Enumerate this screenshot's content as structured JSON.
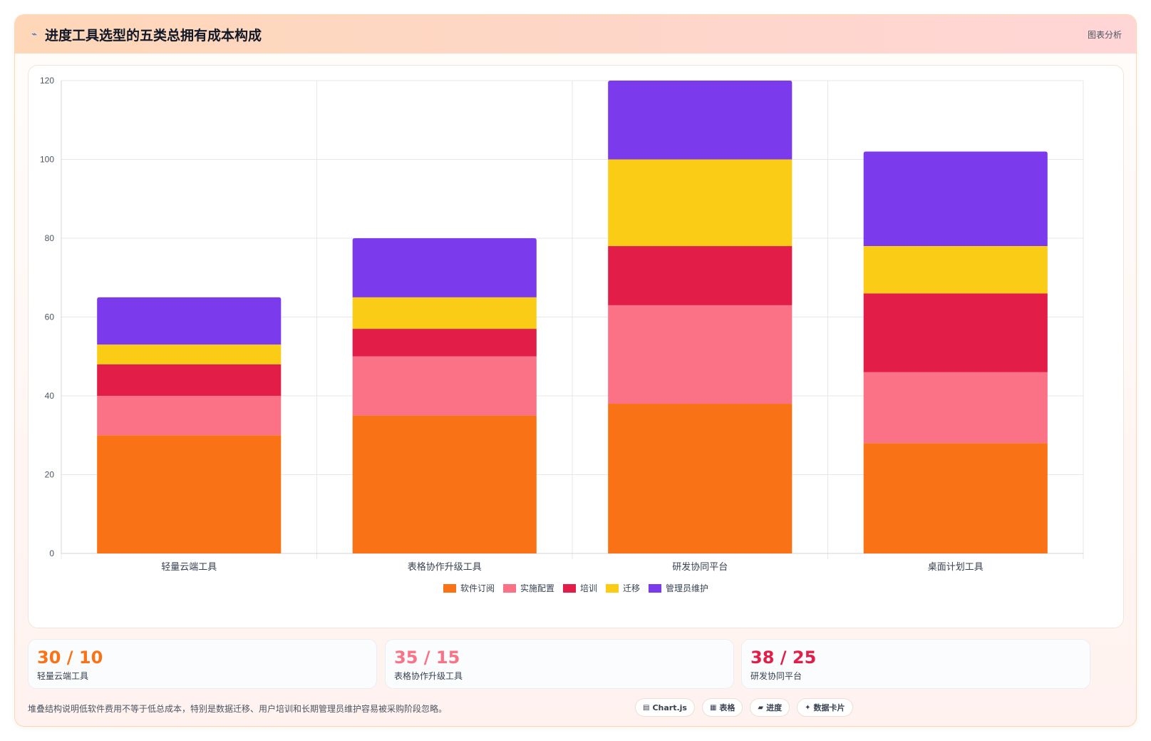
{
  "header": {
    "icon": "trend-icon",
    "title": "进度工具选型的五类总拥有成本构成",
    "tag": "图表分析"
  },
  "chart_data": {
    "type": "bar",
    "stacked": true,
    "categories": [
      "轻量云端工具",
      "表格协作升级工具",
      "研发协同平台",
      "桌面计划工具"
    ],
    "series": [
      {
        "name": "软件订阅",
        "color": "#f97316",
        "values": [
          30,
          35,
          38,
          28
        ]
      },
      {
        "name": "实施配置",
        "color": "#fb7185",
        "values": [
          10,
          15,
          25,
          18
        ]
      },
      {
        "name": "培训",
        "color": "#e11d48",
        "values": [
          8,
          7,
          15,
          20
        ]
      },
      {
        "name": "迁移",
        "color": "#facc15",
        "values": [
          5,
          8,
          22,
          12
        ]
      },
      {
        "name": "管理员维护",
        "color": "#7c3aed",
        "values": [
          12,
          15,
          20,
          24
        ]
      }
    ],
    "ylim": [
      0,
      120
    ],
    "yticks": [
      0,
      20,
      40,
      60,
      80,
      100,
      120
    ],
    "grid": true,
    "legend": "bottom"
  },
  "stats": [
    {
      "value": "30 / 10",
      "label": "轻量云端工具",
      "color": "#f97316"
    },
    {
      "value": "35 / 15",
      "label": "表格协作升级工具",
      "color": "#fb7185"
    },
    {
      "value": "38 / 25",
      "label": "研发协同平台",
      "color": "#e11d48"
    }
  ],
  "footer": {
    "note": "堆叠结构说明低软件费用不等于低总成本，特别是数据迁移、用户培训和长期管理员维护容易被采购阶段忽略。",
    "chips": [
      {
        "icon": "chart-icon",
        "glyph": "▤",
        "label": "Chart.js"
      },
      {
        "icon": "table-icon",
        "glyph": "▦",
        "label": "表格"
      },
      {
        "icon": "progress-icon",
        "glyph": "▰",
        "label": "进度"
      },
      {
        "icon": "card-icon",
        "glyph": "✦",
        "label": "数据卡片"
      }
    ]
  }
}
